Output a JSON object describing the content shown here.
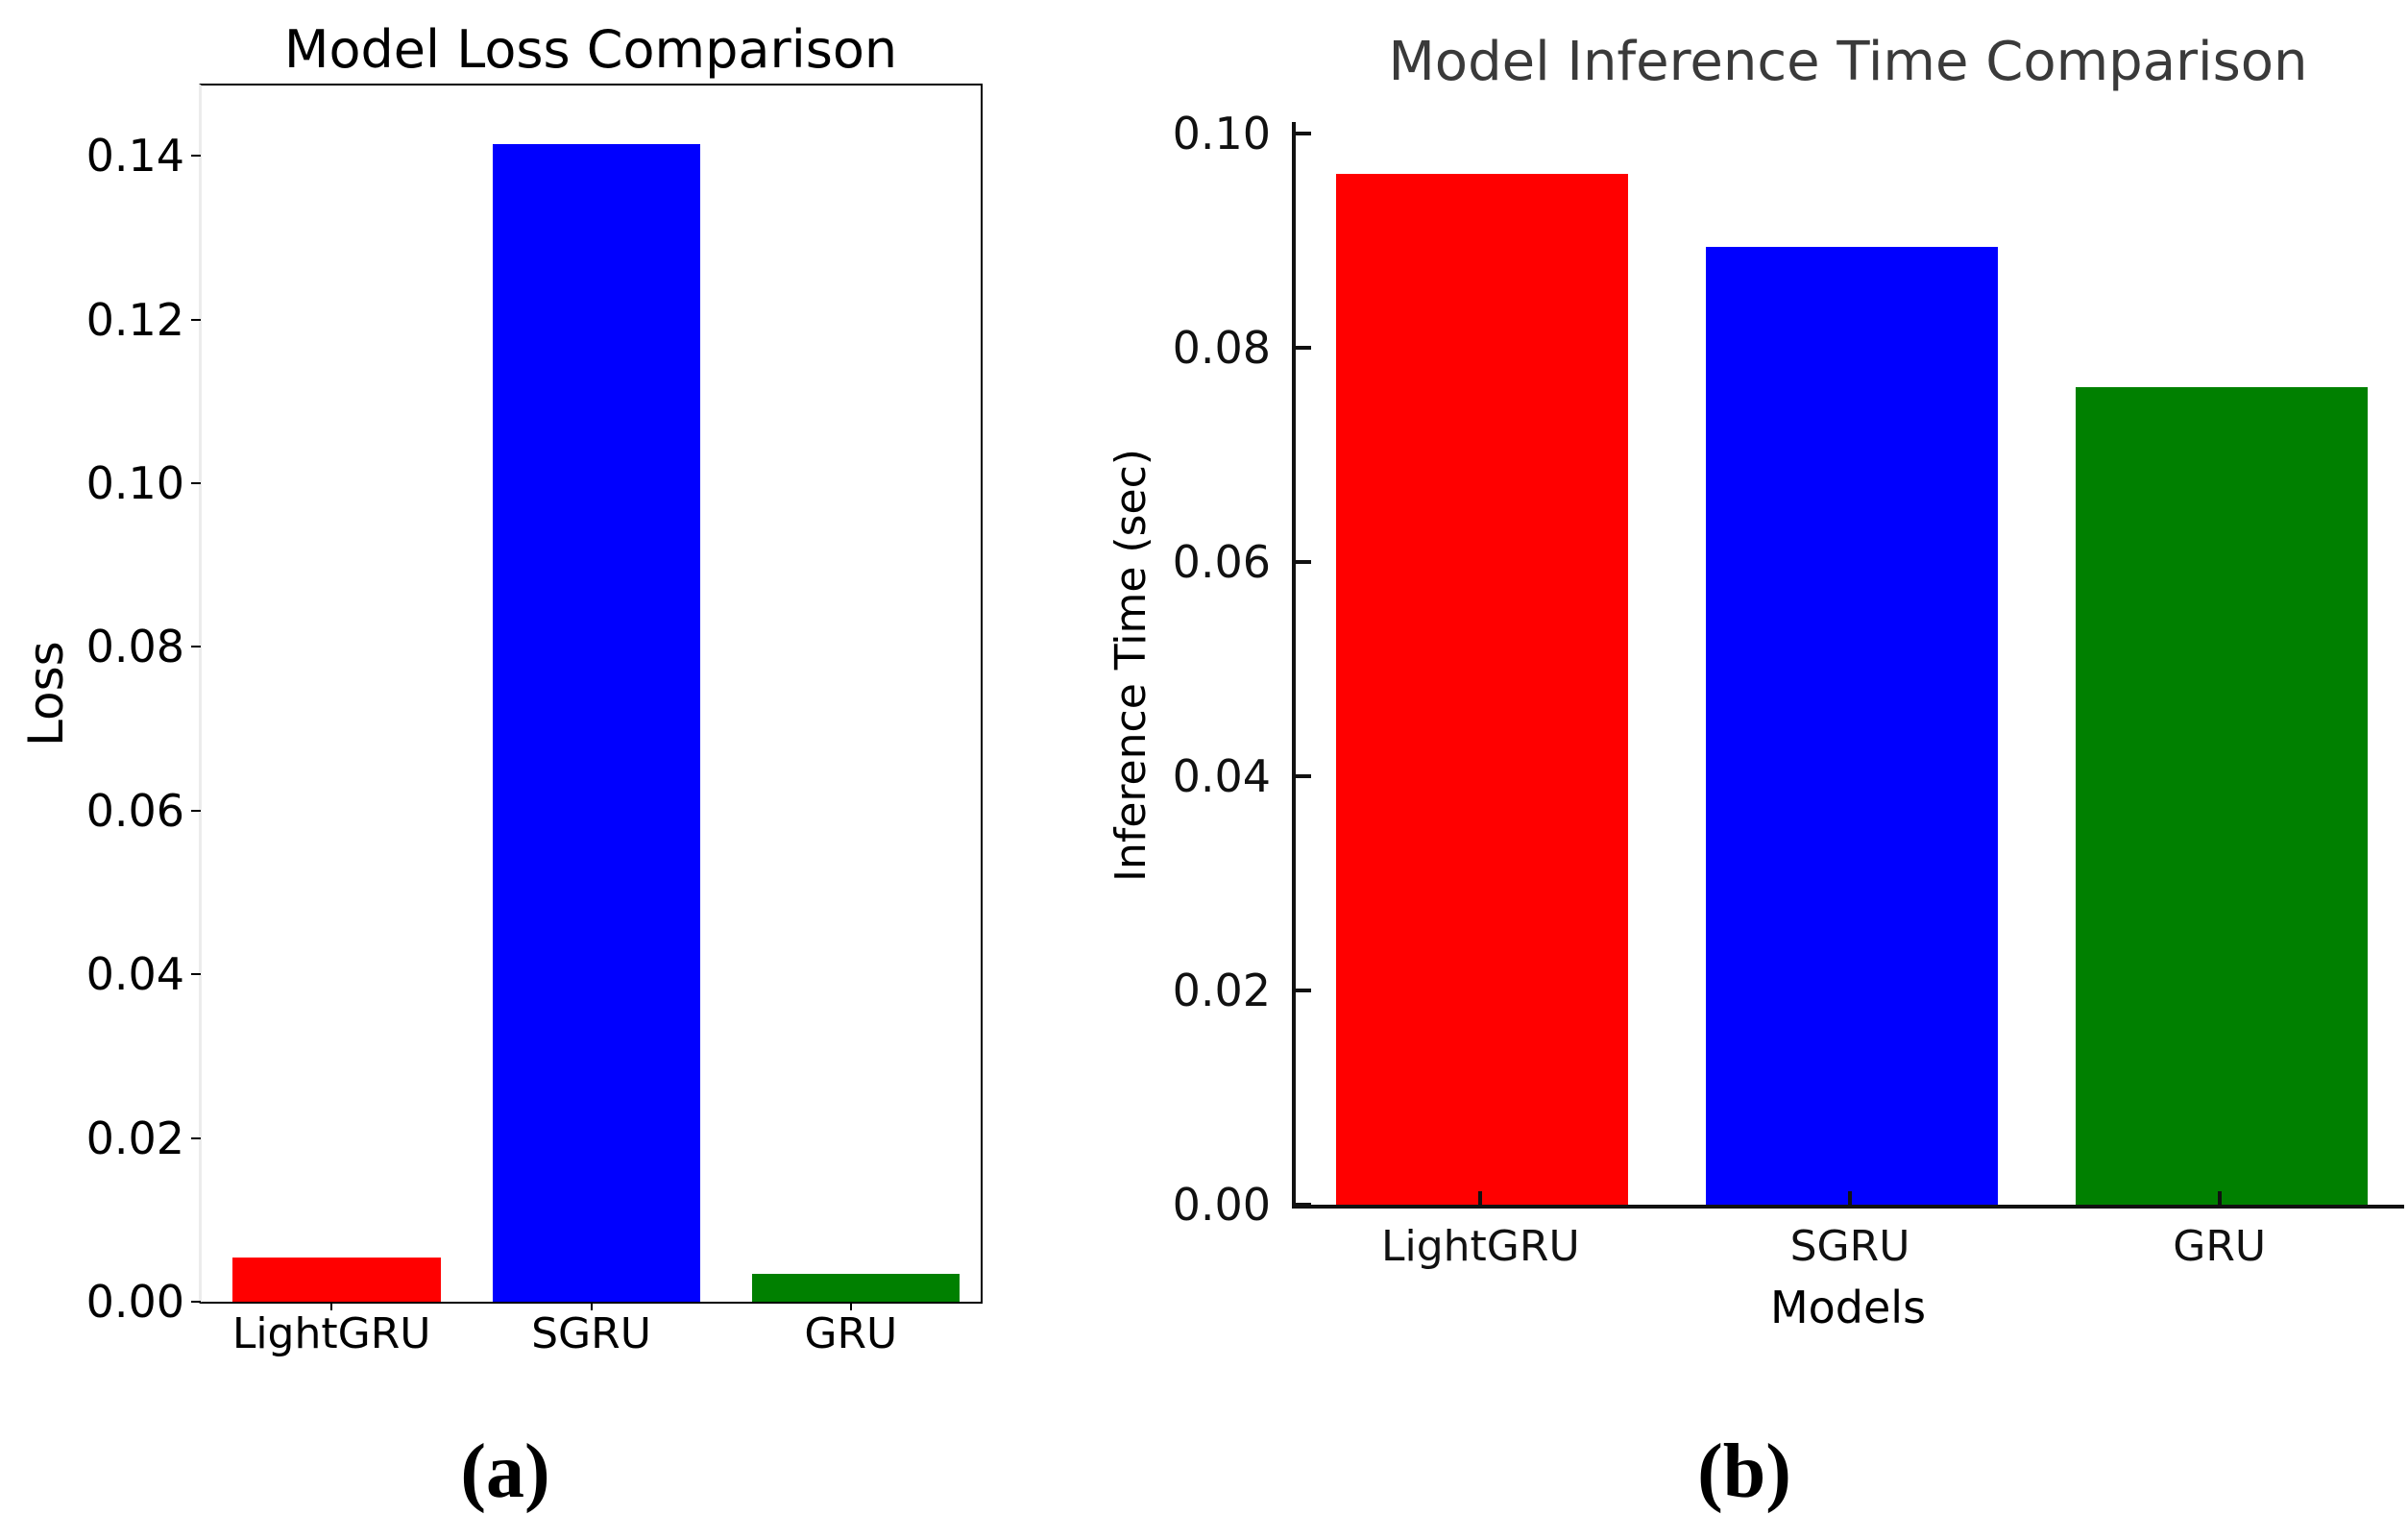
{
  "figure": {
    "background": "#ffffff",
    "panels": [
      "(a)",
      "(b)"
    ]
  },
  "chart_data": [
    {
      "type": "bar",
      "caption": "(a)",
      "title": "Model Loss Comparison",
      "title_color": "#000000",
      "xlabel": "",
      "ylabel": "Loss",
      "categories": [
        "LightGRU",
        "SGRU",
        "GRU"
      ],
      "values": [
        0.0054,
        0.1415,
        0.0034
      ],
      "bar_colors": [
        "#ff0000",
        "#0000ff",
        "#008000"
      ],
      "yticks": [
        0.0,
        0.02,
        0.04,
        0.06,
        0.08,
        0.1,
        0.12,
        0.14
      ],
      "ytick_labels": [
        "0.00",
        "0.02",
        "0.04",
        "0.06",
        "0.08",
        "0.10",
        "0.12",
        "0.14"
      ],
      "ylim": [
        0,
        0.1486
      ],
      "grid": false,
      "legend": "none"
    },
    {
      "type": "bar",
      "caption": "(b)",
      "title": "Model Inference Time Comparison",
      "title_color": "#3a3a3a",
      "xlabel": "Models",
      "ylabel": "Inference Time (sec)",
      "categories": [
        "LightGRU",
        "SGRU",
        "GRU"
      ],
      "values": [
        0.0963,
        0.0894,
        0.0763
      ],
      "bar_colors": [
        "#ff0000",
        "#0000ff",
        "#008000"
      ],
      "yticks": [
        0.0,
        0.02,
        0.04,
        0.06,
        0.08,
        0.1
      ],
      "ytick_labels": [
        "0.00",
        "0.02",
        "0.04",
        "0.06",
        "0.08",
        "0.10"
      ],
      "ylim": [
        0,
        0.1011
      ],
      "grid": false,
      "legend": "none"
    }
  ]
}
